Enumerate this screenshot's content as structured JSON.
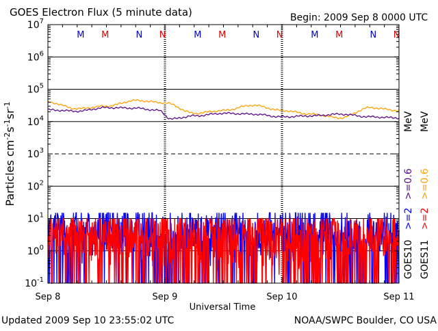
{
  "header": {
    "title": "GOES Electron Flux (5 minute data)",
    "begin": "Begin: 2009 Sep 8  0000 UTC"
  },
  "footer": {
    "updated": "Updated 2009 Sep 10 23:55:02 UTC",
    "source": "NOAA/SWPC Boulder, CO USA"
  },
  "colors": {
    "goes10_high": "#0000ff",
    "goes11_high": "#ff0000",
    "goes10_low": "#5a0a8c",
    "goes11_low": "#ffa000",
    "marker_M": "#e00000",
    "marker_N": "#0000cc"
  },
  "chart_data": {
    "type": "line",
    "title": "GOES Electron Flux (5 minute data)",
    "xlabel": "Universal Time",
    "ylabel": "Particles cm-2s-1sr-1",
    "y_scale": "log",
    "ylim": [
      0.1,
      10000000
    ],
    "xlim": [
      "2009-09-08 00:00",
      "2009-09-11 00:00"
    ],
    "x_ticks": [
      "Sep 8",
      "Sep 9",
      "Sep 10",
      "Sep 11"
    ],
    "y_ticks": [
      "10-1",
      "100",
      "101",
      "102",
      "103",
      "104",
      "105",
      "106",
      "107"
    ],
    "grid": true,
    "legend_placement": "right-vertical",
    "legend": {
      "goes10": "GOES10",
      "goes11": "GOES11",
      "s1_label": ">=2",
      "s2_label": ">=2",
      "s3_label": ">=0.6",
      "s4_label": ">=0.6",
      "unit": "MeV"
    },
    "markers": [
      {
        "label": "M",
        "day": 0.28,
        "color": "blue"
      },
      {
        "label": "M",
        "day": 0.49,
        "color": "red"
      },
      {
        "label": "N",
        "day": 0.78,
        "color": "blue"
      },
      {
        "label": "N",
        "day": 0.98,
        "color": "red"
      },
      {
        "label": "M",
        "day": 1.28,
        "color": "blue"
      },
      {
        "label": "M",
        "day": 1.49,
        "color": "red"
      },
      {
        "label": "N",
        "day": 1.78,
        "color": "blue"
      },
      {
        "label": "N",
        "day": 1.98,
        "color": "red"
      },
      {
        "label": "M",
        "day": 2.28,
        "color": "blue"
      },
      {
        "label": "M",
        "day": 2.49,
        "color": "red"
      },
      {
        "label": "N",
        "day": 2.78,
        "color": "blue"
      },
      {
        "label": "N",
        "day": 2.98,
        "color": "red"
      }
    ],
    "series": [
      {
        "name": "GOES11 >=0.6 MeV",
        "x": [
          0.0,
          0.25,
          0.5,
          0.75,
          1.0,
          1.25,
          1.5,
          1.75,
          2.0,
          2.25,
          2.5,
          2.75,
          3.0
        ],
        "y": [
          40000,
          25000,
          30000,
          45000,
          38000,
          18000,
          22000,
          32000,
          22000,
          17000,
          13000,
          27000,
          22000
        ]
      },
      {
        "name": "GOES10 >=0.6 MeV",
        "x": [
          0.0,
          0.25,
          0.5,
          0.75,
          0.95,
          1.05,
          1.25,
          1.5,
          1.75,
          2.0,
          2.25,
          2.5,
          2.75,
          3.0
        ],
        "y": [
          23000,
          21000,
          27000,
          26000,
          22000,
          12000,
          15000,
          18000,
          17000,
          14000,
          15000,
          17000,
          14000,
          13000
        ]
      },
      {
        "name": "GOES10 >=2 MeV",
        "x_range": [
          0.0,
          3.0
        ],
        "y_range": [
          0.1,
          15
        ],
        "typical": 4
      },
      {
        "name": "GOES11 >=2 MeV",
        "x_range": [
          0.0,
          3.0
        ],
        "y_range": [
          0.1,
          10
        ],
        "typical": 3
      }
    ]
  }
}
